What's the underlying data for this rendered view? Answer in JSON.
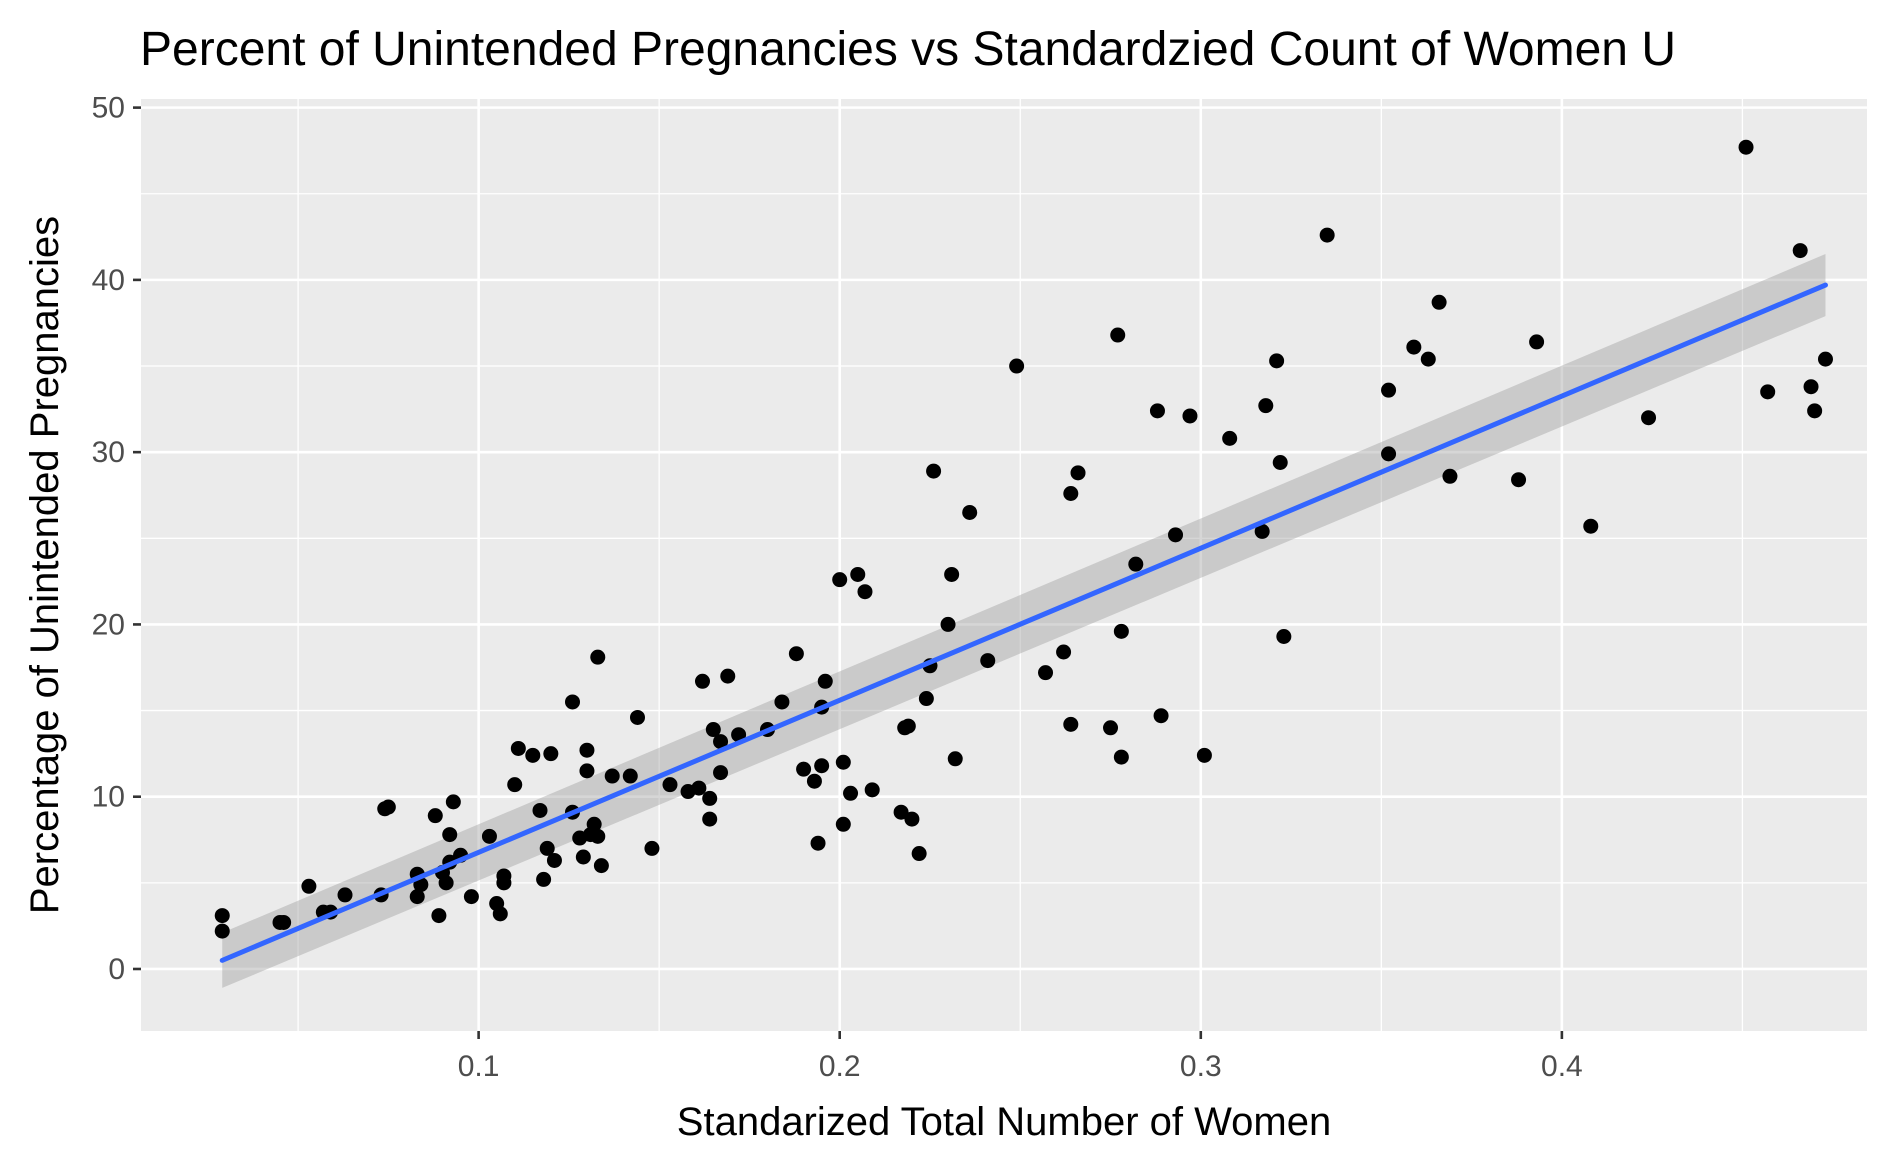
{
  "chart_data": {
    "type": "scatter",
    "title": "Percent of Unintended Pregnancies vs Standardzied Count of Women U",
    "xlabel": "Standarized Total Number of Women",
    "ylabel": "Percentage of Unintended Pregnancies",
    "xlim": [
      0.0065,
      0.4845
    ],
    "ylim": [
      -3.6,
      50.5
    ],
    "x_ticks": [
      0.1,
      0.2,
      0.3,
      0.4
    ],
    "x_tick_labels": [
      "0.1",
      "0.2",
      "0.3",
      "0.4"
    ],
    "y_ticks": [
      0,
      10,
      20,
      30,
      40,
      50
    ],
    "y_tick_labels": [
      "0",
      "10",
      "20",
      "30",
      "40",
      "50"
    ],
    "grid": true,
    "legend": "none",
    "colors": {
      "panel": "#ebebeb",
      "grid": "#ffffff",
      "points": "#000000",
      "fit_line": "#3366ff",
      "confidence_band": "#999999"
    },
    "series": [
      {
        "points": [
          [
            0.029,
            2.2
          ],
          [
            0.029,
            3.1
          ],
          [
            0.045,
            2.7
          ],
          [
            0.046,
            2.7
          ],
          [
            0.053,
            4.8
          ],
          [
            0.057,
            3.3
          ],
          [
            0.059,
            3.3
          ],
          [
            0.063,
            4.3
          ],
          [
            0.073,
            4.3
          ],
          [
            0.074,
            9.3
          ],
          [
            0.075,
            9.4
          ],
          [
            0.083,
            4.2
          ],
          [
            0.083,
            5.5
          ],
          [
            0.084,
            4.9
          ],
          [
            0.088,
            8.9
          ],
          [
            0.089,
            3.1
          ],
          [
            0.09,
            5.6
          ],
          [
            0.091,
            5.0
          ],
          [
            0.092,
            7.8
          ],
          [
            0.092,
            6.2
          ],
          [
            0.093,
            9.7
          ],
          [
            0.095,
            6.6
          ],
          [
            0.098,
            4.2
          ],
          [
            0.103,
            7.7
          ],
          [
            0.105,
            3.8
          ],
          [
            0.106,
            3.2
          ],
          [
            0.107,
            5.4
          ],
          [
            0.107,
            5.0
          ],
          [
            0.11,
            10.7
          ],
          [
            0.111,
            12.8
          ],
          [
            0.115,
            12.4
          ],
          [
            0.117,
            9.2
          ],
          [
            0.118,
            5.2
          ],
          [
            0.119,
            7.0
          ],
          [
            0.12,
            12.5
          ],
          [
            0.121,
            6.3
          ],
          [
            0.126,
            9.1
          ],
          [
            0.126,
            15.5
          ],
          [
            0.128,
            7.6
          ],
          [
            0.129,
            6.5
          ],
          [
            0.13,
            11.5
          ],
          [
            0.13,
            12.7
          ],
          [
            0.131,
            7.8
          ],
          [
            0.132,
            8.4
          ],
          [
            0.133,
            7.7
          ],
          [
            0.133,
            18.1
          ],
          [
            0.134,
            6.0
          ],
          [
            0.137,
            11.2
          ],
          [
            0.142,
            11.2
          ],
          [
            0.144,
            14.6
          ],
          [
            0.148,
            7.0
          ],
          [
            0.153,
            10.7
          ],
          [
            0.158,
            10.3
          ],
          [
            0.161,
            10.5
          ],
          [
            0.162,
            16.7
          ],
          [
            0.164,
            8.7
          ],
          [
            0.164,
            9.9
          ],
          [
            0.165,
            13.9
          ],
          [
            0.167,
            11.4
          ],
          [
            0.167,
            13.2
          ],
          [
            0.169,
            17.0
          ],
          [
            0.172,
            13.6
          ],
          [
            0.18,
            13.9
          ],
          [
            0.184,
            15.5
          ],
          [
            0.188,
            18.3
          ],
          [
            0.19,
            11.6
          ],
          [
            0.193,
            10.9
          ],
          [
            0.194,
            7.3
          ],
          [
            0.195,
            11.8
          ],
          [
            0.195,
            15.2
          ],
          [
            0.196,
            16.7
          ],
          [
            0.2,
            22.6
          ],
          [
            0.201,
            8.4
          ],
          [
            0.201,
            12.0
          ],
          [
            0.203,
            10.2
          ],
          [
            0.205,
            22.9
          ],
          [
            0.207,
            21.9
          ],
          [
            0.209,
            10.4
          ],
          [
            0.217,
            9.1
          ],
          [
            0.218,
            14.0
          ],
          [
            0.219,
            14.1
          ],
          [
            0.22,
            8.7
          ],
          [
            0.222,
            6.7
          ],
          [
            0.224,
            15.7
          ],
          [
            0.225,
            17.6
          ],
          [
            0.226,
            28.9
          ],
          [
            0.23,
            20.0
          ],
          [
            0.231,
            22.9
          ],
          [
            0.232,
            12.2
          ],
          [
            0.236,
            26.5
          ],
          [
            0.241,
            17.9
          ],
          [
            0.249,
            35.0
          ],
          [
            0.257,
            17.2
          ],
          [
            0.262,
            18.4
          ],
          [
            0.264,
            27.6
          ],
          [
            0.264,
            14.2
          ],
          [
            0.266,
            28.8
          ],
          [
            0.275,
            14.0
          ],
          [
            0.277,
            36.8
          ],
          [
            0.278,
            19.6
          ],
          [
            0.278,
            12.3
          ],
          [
            0.282,
            23.5
          ],
          [
            0.288,
            32.4
          ],
          [
            0.289,
            14.7
          ],
          [
            0.293,
            25.2
          ],
          [
            0.297,
            32.1
          ],
          [
            0.301,
            12.4
          ],
          [
            0.308,
            30.8
          ],
          [
            0.317,
            25.4
          ],
          [
            0.318,
            32.7
          ],
          [
            0.321,
            35.3
          ],
          [
            0.322,
            29.4
          ],
          [
            0.323,
            19.3
          ],
          [
            0.335,
            42.6
          ],
          [
            0.352,
            29.9
          ],
          [
            0.352,
            33.6
          ],
          [
            0.359,
            36.1
          ],
          [
            0.363,
            35.4
          ],
          [
            0.366,
            38.7
          ],
          [
            0.369,
            28.6
          ],
          [
            0.388,
            28.4
          ],
          [
            0.393,
            36.4
          ],
          [
            0.408,
            25.7
          ],
          [
            0.424,
            32.0
          ],
          [
            0.451,
            47.7
          ],
          [
            0.457,
            33.5
          ],
          [
            0.466,
            41.7
          ],
          [
            0.469,
            33.8
          ],
          [
            0.47,
            32.4
          ],
          [
            0.473,
            35.4
          ]
        ]
      }
    ],
    "fit": {
      "type": "linear",
      "x": [
        0.029,
        0.473
      ],
      "y": [
        0.5,
        39.7
      ],
      "ci_lower": [
        -1.1,
        37.9
      ],
      "ci_upper": [
        2.1,
        41.5
      ]
    }
  }
}
